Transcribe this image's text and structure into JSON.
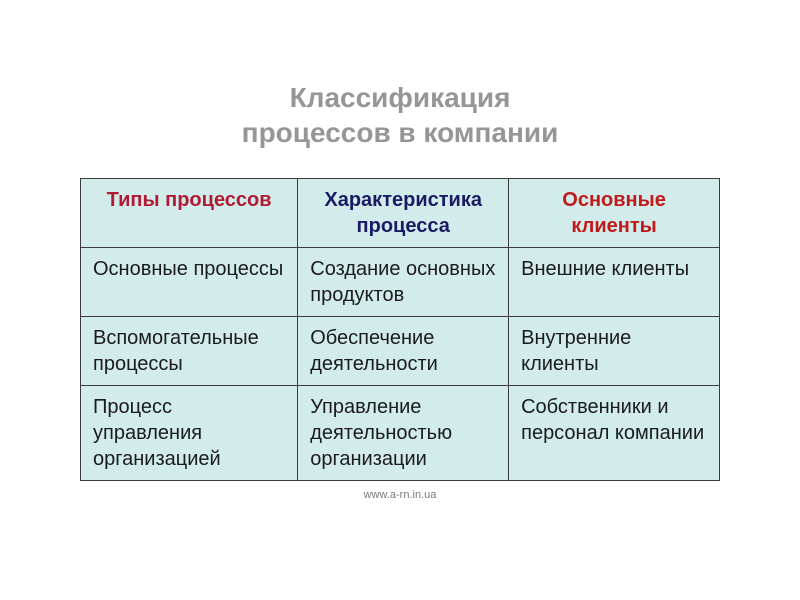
{
  "title_line1": "Классификация",
  "title_line2": "процессов в  компании",
  "table": {
    "background_color": "#d2ecec",
    "border_color": "#3b3b3b",
    "header_colors": [
      "#b21a34",
      "#1b1b64",
      "#c11a1a"
    ],
    "body_text_color": "#1b1b1b",
    "header_fontsize": 20,
    "cell_fontsize": 20,
    "columns": [
      "Типы процессов",
      "Характеристика процесса",
      "Основные клиенты"
    ],
    "rows": [
      [
        "Основные процессы",
        "Создание основных продуктов",
        "Внешние клиенты"
      ],
      [
        "Вспомогательные процессы",
        "Обеспечение деятельности",
        "Внутренние клиенты"
      ],
      [
        "Процесс управления организацией",
        "Управление деятельностью организации",
        "Собственники и персонал компании"
      ]
    ]
  },
  "footer": "www.a-rn.in.ua",
  "title_color": "#969696",
  "title_fontsize": 28
}
